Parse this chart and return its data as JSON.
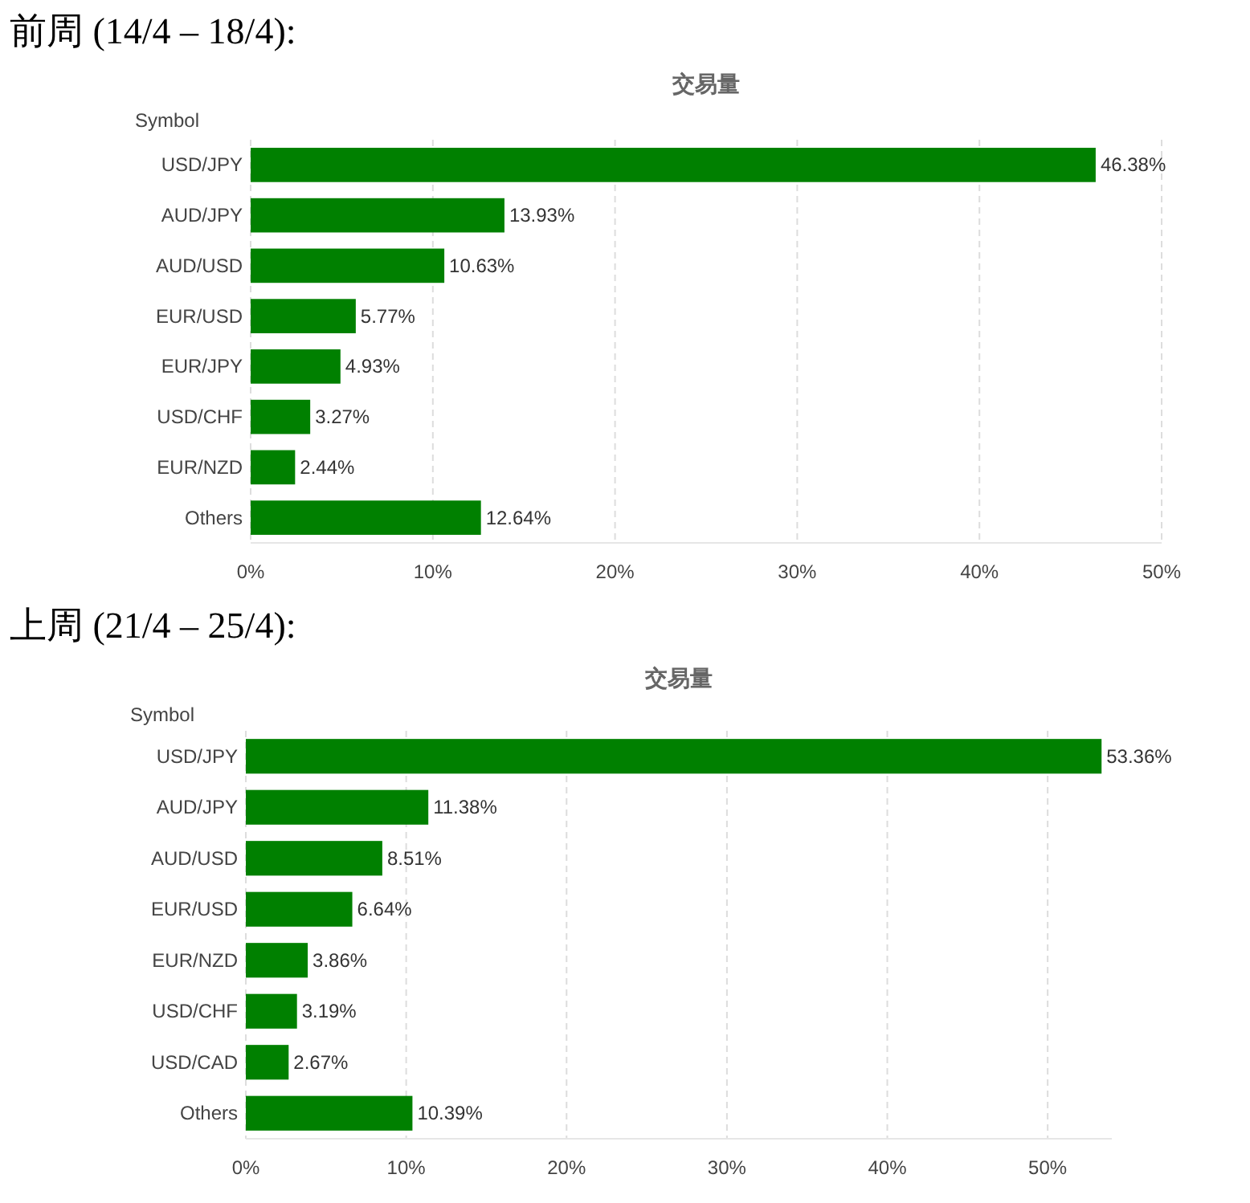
{
  "chart_data": [
    {
      "type": "bar",
      "orientation": "horizontal",
      "title": "前周 (14/4 – 18/4):",
      "subtitle": "交易量",
      "ylabel": "Symbol",
      "categories": [
        "USD/JPY",
        "AUD/JPY",
        "AUD/USD",
        "EUR/USD",
        "EUR/JPY",
        "USD/CHF",
        "EUR/NZD",
        "Others"
      ],
      "series": [
        {
          "color": "#008000",
          "values": [
            46.38,
            13.93,
            10.63,
            5.77,
            4.93,
            3.27,
            2.44,
            12.64
          ],
          "value_labels": [
            "46.38%",
            "13.93%",
            "10.63%",
            "5.77%",
            "4.93%",
            "3.27%",
            "2.44%",
            "12.64%"
          ]
        }
      ],
      "xlim": [
        0,
        50
      ],
      "xticks": [
        {
          "value": 0,
          "label": "0%"
        },
        {
          "value": 10,
          "label": "10%"
        },
        {
          "value": 20,
          "label": "20%"
        },
        {
          "value": 30,
          "label": "30%"
        },
        {
          "value": 40,
          "label": "40%"
        },
        {
          "value": 50,
          "label": "50%"
        }
      ],
      "grid": "x"
    },
    {
      "type": "bar",
      "orientation": "horizontal",
      "title": "上周 (21/4 – 25/4):",
      "subtitle": "交易量",
      "ylabel": "Symbol",
      "categories": [
        "USD/JPY",
        "AUD/JPY",
        "AUD/USD",
        "EUR/USD",
        "EUR/NZD",
        "USD/CHF",
        "USD/CAD",
        "Others"
      ],
      "series": [
        {
          "color": "#008000",
          "values": [
            53.36,
            11.38,
            8.51,
            6.64,
            3.86,
            3.19,
            2.67,
            10.39
          ],
          "value_labels": [
            "53.36%",
            "11.38%",
            "8.51%",
            "6.64%",
            "3.86%",
            "3.19%",
            "2.67%",
            "10.39%"
          ]
        }
      ],
      "xlim": [
        0,
        54
      ],
      "xticks": [
        {
          "value": 0,
          "label": "0%"
        },
        {
          "value": 10,
          "label": "10%"
        },
        {
          "value": 20,
          "label": "20%"
        },
        {
          "value": 30,
          "label": "30%"
        },
        {
          "value": 40,
          "label": "40%"
        },
        {
          "value": 50,
          "label": "50%"
        }
      ],
      "grid": "x"
    }
  ]
}
